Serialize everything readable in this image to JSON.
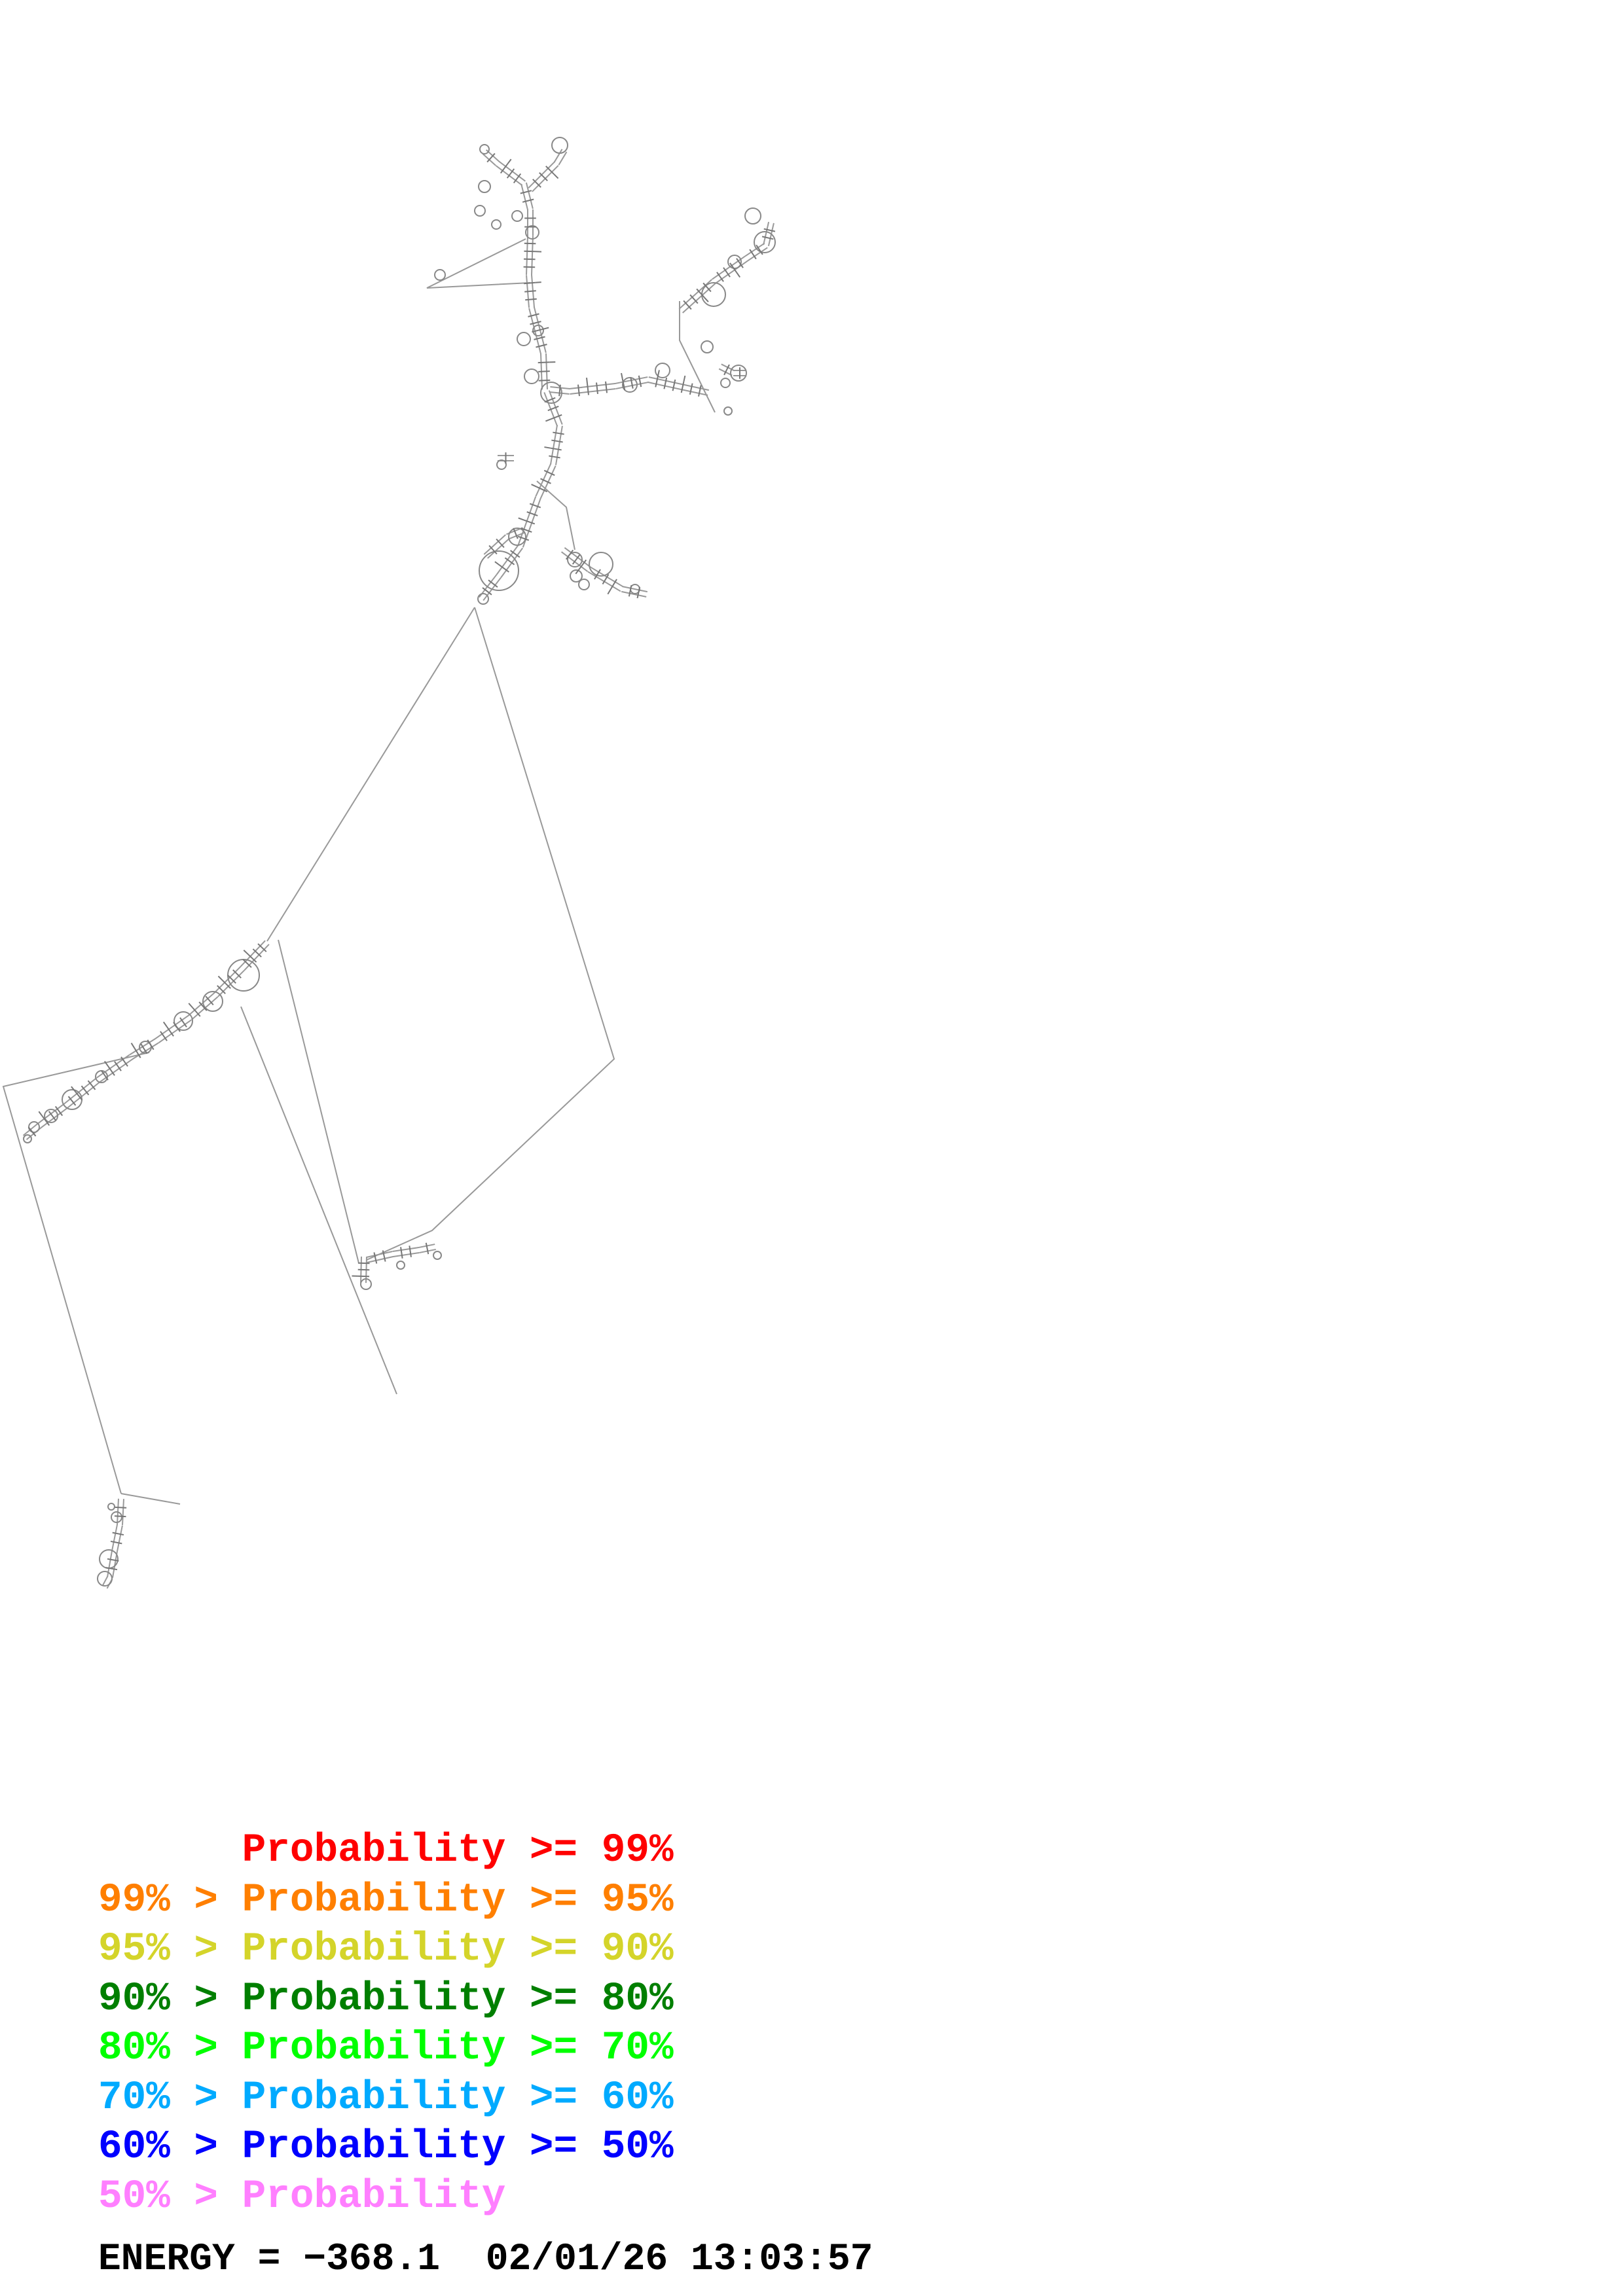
{
  "legend": [
    {
      "prefix": "",
      "label": "Probability",
      "suffix": " >= 99%",
      "color": "#ff0000"
    },
    {
      "prefix": "99% > ",
      "label": "Probability",
      "suffix": " >= 95%",
      "color": "#ff7f00"
    },
    {
      "prefix": "95% > ",
      "label": "Probability",
      "suffix": " >= 90%",
      "color": "#d4d42a"
    },
    {
      "prefix": "90% > ",
      "label": "Probability",
      "suffix": " >= 80%",
      "color": "#007f00"
    },
    {
      "prefix": "80% > ",
      "label": "Probability",
      "suffix": " >= 70%",
      "color": "#00ff00"
    },
    {
      "prefix": "70% > ",
      "label": "Probability",
      "suffix": " >= 60%",
      "color": "#00aaff"
    },
    {
      "prefix": "60% > ",
      "label": "Probability",
      "suffix": " >= 50%",
      "color": "#0000ff"
    },
    {
      "prefix": "50% > ",
      "label": "Probability",
      "suffix": "",
      "color": "#ff7fff"
    }
  ],
  "energy": {
    "label": "ENERGY = ",
    "value": "−368.1",
    "date": "02/01/26",
    "time": "13:03:57"
  },
  "colors": {
    "backbone": "#999999",
    "base_pair": "#777777",
    "text": "#000000"
  }
}
